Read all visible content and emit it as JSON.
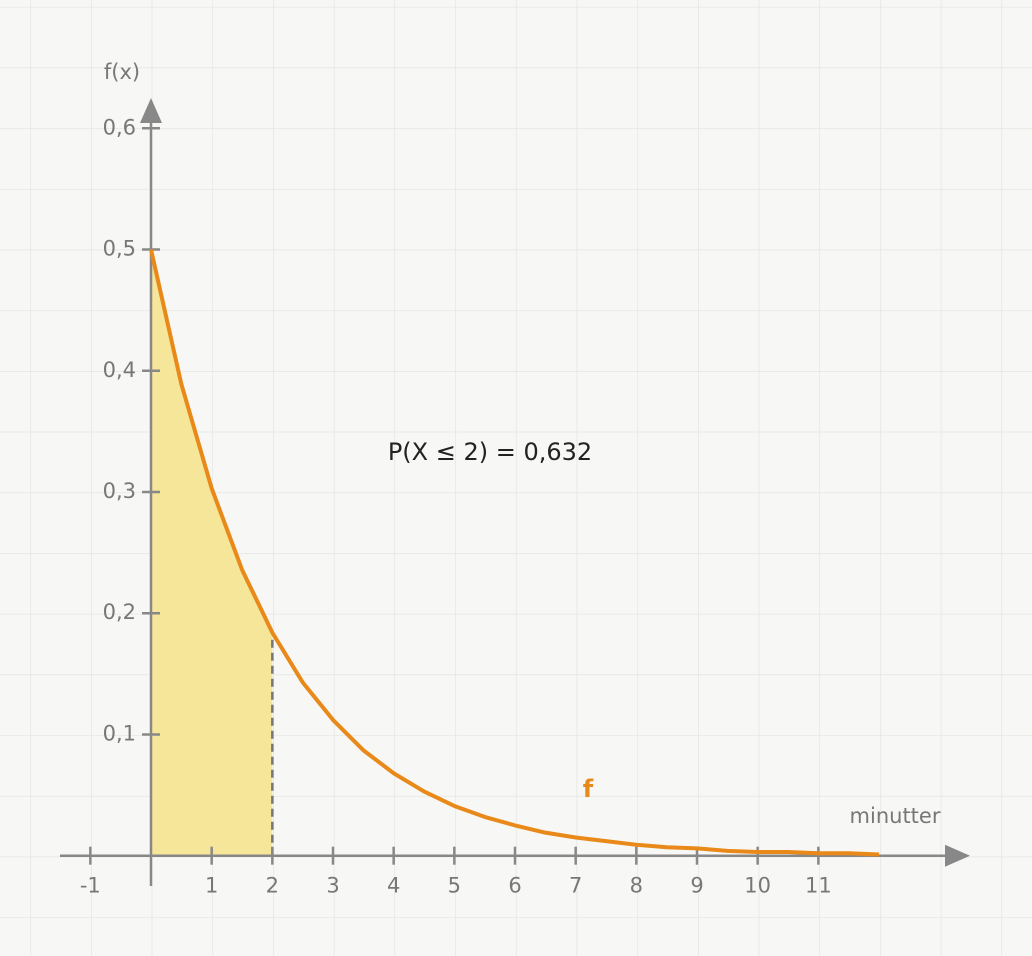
{
  "chart_data": {
    "type": "line",
    "x_label": "minutter",
    "y_label": "f(x)",
    "annotation": "P(X ≤ 2) = 0,632",
    "series": [
      {
        "name": "f",
        "color": "#e8891a",
        "x": [
          0,
          0.5,
          1,
          1.5,
          2,
          2.5,
          3,
          3.5,
          4,
          4.5,
          5,
          5.5,
          6,
          6.5,
          7,
          7.5,
          8,
          8.5,
          9,
          9.5,
          10,
          10.5,
          11,
          11.5,
          12
        ],
        "values": [
          0.5,
          0.389,
          0.303,
          0.236,
          0.184,
          0.143,
          0.112,
          0.087,
          0.068,
          0.053,
          0.041,
          0.032,
          0.025,
          0.019,
          0.015,
          0.012,
          0.009,
          0.007,
          0.006,
          0.004,
          0.003,
          0.003,
          0.002,
          0.002,
          0.001
        ]
      }
    ],
    "fill_range": [
      0,
      2
    ],
    "fill_color": "#f5e69a",
    "xlim": [
      -1.5,
      13.5
    ],
    "ylim": [
      -0.025,
      0.625
    ],
    "xticks": [
      -1,
      1,
      2,
      3,
      4,
      5,
      6,
      7,
      8,
      9,
      10,
      11
    ],
    "yticks": [
      {
        "value": 0.1,
        "label": "0,1"
      },
      {
        "value": 0.2,
        "label": "0,2"
      },
      {
        "value": 0.3,
        "label": "0,3"
      },
      {
        "value": 0.4,
        "label": "0,4"
      },
      {
        "value": 0.5,
        "label": "0,5"
      },
      {
        "value": 0.6,
        "label": "0,6"
      }
    ],
    "grid": true
  }
}
